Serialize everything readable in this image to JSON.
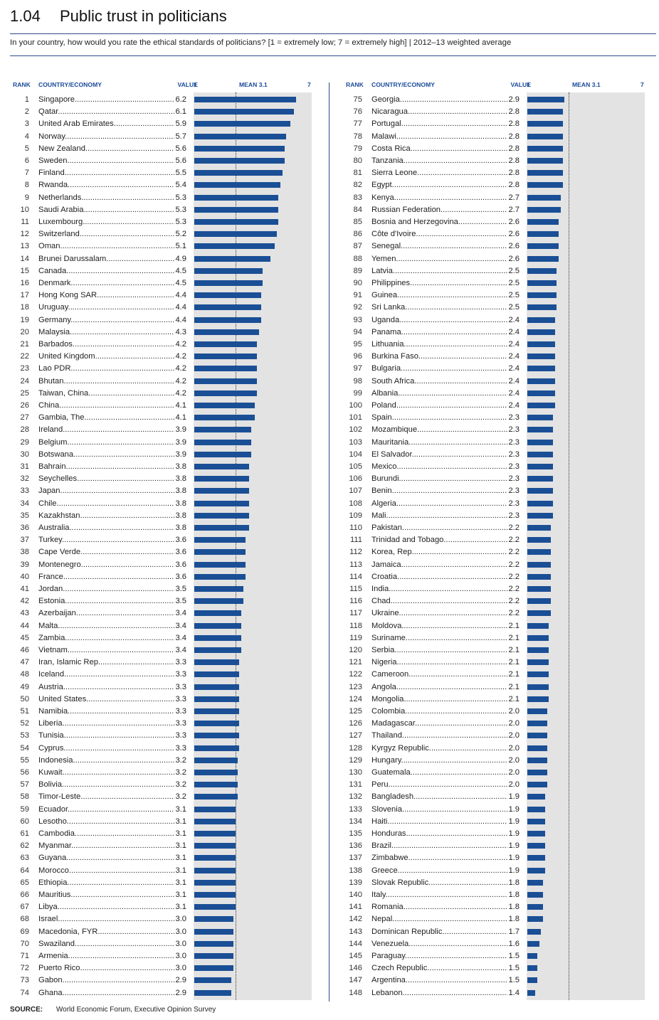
{
  "title_number": "1.04",
  "title": "Public trust in politicians",
  "subtitle": "In your country, how would you rate the ethical standards of politicians? [1 = extremely low; 7 = extremely high] | 2012–13 weighted average",
  "headers": {
    "rank": "RANK",
    "country": "COUNTRY/ECONOMY",
    "value": "VALUE",
    "scale_min": "1",
    "mean": "MEAN 3.1",
    "scale_max": "7"
  },
  "source_label": "SOURCE:",
  "source_text": "World Economic Forum, Executive Opinion Survey",
  "colors": {
    "bar": "#1a4f96",
    "background_band": "#e3e3e3",
    "header_text": "#1a4a9a",
    "rule": "#2e4a8a"
  },
  "chart_data": {
    "type": "bar",
    "orientation": "horizontal",
    "title": "Public trust in politicians",
    "xlim": [
      1,
      7
    ],
    "mean": 3.1,
    "rows": [
      {
        "rank": "1",
        "country": "Singapore",
        "value": "6.2"
      },
      {
        "rank": "2",
        "country": "Qatar",
        "value": "6.1"
      },
      {
        "rank": "3",
        "country": "United Arab Emirates",
        "value": "5.9"
      },
      {
        "rank": "4",
        "country": "Norway",
        "value": "5.7"
      },
      {
        "rank": "5",
        "country": "New Zealand",
        "value": "5.6"
      },
      {
        "rank": "6",
        "country": "Sweden",
        "value": "5.6"
      },
      {
        "rank": "7",
        "country": "Finland",
        "value": "5.5"
      },
      {
        "rank": "8",
        "country": "Rwanda",
        "value": "5.4"
      },
      {
        "rank": "9",
        "country": "Netherlands",
        "value": "5.3"
      },
      {
        "rank": "10",
        "country": "Saudi Arabia",
        "value": "5.3"
      },
      {
        "rank": "11",
        "country": "Luxembourg",
        "value": "5.3"
      },
      {
        "rank": "12",
        "country": "Switzerland",
        "value": "5.2"
      },
      {
        "rank": "13",
        "country": "Oman",
        "value": "5.1"
      },
      {
        "rank": "14",
        "country": "Brunei Darussalam",
        "value": "4.9"
      },
      {
        "rank": "15",
        "country": "Canada",
        "value": "4.5"
      },
      {
        "rank": "16",
        "country": "Denmark",
        "value": "4.5"
      },
      {
        "rank": "17",
        "country": "Hong Kong SAR",
        "value": "4.4"
      },
      {
        "rank": "18",
        "country": "Uruguay",
        "value": "4.4"
      },
      {
        "rank": "19",
        "country": "Germany",
        "value": "4.4"
      },
      {
        "rank": "20",
        "country": "Malaysia",
        "value": "4.3"
      },
      {
        "rank": "21",
        "country": "Barbados",
        "value": "4.2"
      },
      {
        "rank": "22",
        "country": "United Kingdom",
        "value": "4.2"
      },
      {
        "rank": "23",
        "country": "Lao PDR",
        "value": "4.2"
      },
      {
        "rank": "24",
        "country": "Bhutan",
        "value": "4.2"
      },
      {
        "rank": "25",
        "country": "Taiwan, China",
        "value": "4.2"
      },
      {
        "rank": "26",
        "country": "China",
        "value": "4.1"
      },
      {
        "rank": "27",
        "country": "Gambia, The",
        "value": "4.1"
      },
      {
        "rank": "28",
        "country": "Ireland",
        "value": "3.9"
      },
      {
        "rank": "29",
        "country": "Belgium",
        "value": "3.9"
      },
      {
        "rank": "30",
        "country": "Botswana",
        "value": "3.9"
      },
      {
        "rank": "31",
        "country": "Bahrain",
        "value": "3.8"
      },
      {
        "rank": "32",
        "country": "Seychelles",
        "value": "3.8"
      },
      {
        "rank": "33",
        "country": "Japan",
        "value": "3.8"
      },
      {
        "rank": "34",
        "country": "Chile",
        "value": "3.8"
      },
      {
        "rank": "35",
        "country": "Kazakhstan",
        "value": "3.8"
      },
      {
        "rank": "36",
        "country": "Australia",
        "value": "3.8"
      },
      {
        "rank": "37",
        "country": "Turkey",
        "value": "3.6"
      },
      {
        "rank": "38",
        "country": "Cape Verde",
        "value": "3.6"
      },
      {
        "rank": "39",
        "country": "Montenegro",
        "value": "3.6"
      },
      {
        "rank": "40",
        "country": "France",
        "value": "3.6"
      },
      {
        "rank": "41",
        "country": "Jordan",
        "value": "3.5"
      },
      {
        "rank": "42",
        "country": "Estonia",
        "value": "3.5"
      },
      {
        "rank": "43",
        "country": "Azerbaijan",
        "value": "3.4"
      },
      {
        "rank": "44",
        "country": "Malta",
        "value": "3.4"
      },
      {
        "rank": "45",
        "country": "Zambia",
        "value": "3.4"
      },
      {
        "rank": "46",
        "country": "Vietnam",
        "value": "3.4"
      },
      {
        "rank": "47",
        "country": "Iran, Islamic Rep.",
        "value": "3.3"
      },
      {
        "rank": "48",
        "country": "Iceland",
        "value": "3.3"
      },
      {
        "rank": "49",
        "country": "Austria",
        "value": "3.3"
      },
      {
        "rank": "50",
        "country": "United States",
        "value": "3.3"
      },
      {
        "rank": "51",
        "country": "Namibia",
        "value": "3.3"
      },
      {
        "rank": "52",
        "country": "Liberia",
        "value": "3.3"
      },
      {
        "rank": "53",
        "country": "Tunisia",
        "value": "3.3"
      },
      {
        "rank": "54",
        "country": "Cyprus",
        "value": "3.3"
      },
      {
        "rank": "55",
        "country": "Indonesia",
        "value": "3.2"
      },
      {
        "rank": "56",
        "country": "Kuwait",
        "value": "3.2"
      },
      {
        "rank": "57",
        "country": "Bolivia",
        "value": "3.2"
      },
      {
        "rank": "58",
        "country": "Timor-Leste",
        "value": "3.2"
      },
      {
        "rank": "59",
        "country": "Ecuador",
        "value": "3.1"
      },
      {
        "rank": "60",
        "country": "Lesotho",
        "value": "3.1"
      },
      {
        "rank": "61",
        "country": "Cambodia",
        "value": "3.1"
      },
      {
        "rank": "62",
        "country": "Myanmar",
        "value": "3.1"
      },
      {
        "rank": "63",
        "country": "Guyana",
        "value": "3.1"
      },
      {
        "rank": "64",
        "country": "Morocco",
        "value": "3.1"
      },
      {
        "rank": "65",
        "country": "Ethiopia",
        "value": "3.1"
      },
      {
        "rank": "66",
        "country": "Mauritius",
        "value": "3.1"
      },
      {
        "rank": "67",
        "country": "Libya",
        "value": "3.1"
      },
      {
        "rank": "68",
        "country": "Israel",
        "value": "3.0"
      },
      {
        "rank": "69",
        "country": "Macedonia, FYR",
        "value": "3.0"
      },
      {
        "rank": "70",
        "country": "Swaziland",
        "value": "3.0"
      },
      {
        "rank": "71",
        "country": "Armenia",
        "value": "3.0"
      },
      {
        "rank": "72",
        "country": "Puerto Rico",
        "value": "3.0"
      },
      {
        "rank": "73",
        "country": "Gabon",
        "value": "2.9"
      },
      {
        "rank": "74",
        "country": "Ghana",
        "value": "2.9"
      },
      {
        "rank": "75",
        "country": "Georgia",
        "value": "2.9"
      },
      {
        "rank": "76",
        "country": "Nicaragua",
        "value": "2.8"
      },
      {
        "rank": "77",
        "country": "Portugal",
        "value": "2.8"
      },
      {
        "rank": "78",
        "country": "Malawi",
        "value": "2.8"
      },
      {
        "rank": "79",
        "country": "Costa Rica",
        "value": "2.8"
      },
      {
        "rank": "80",
        "country": "Tanzania",
        "value": "2.8"
      },
      {
        "rank": "81",
        "country": "Sierra Leone",
        "value": "2.8"
      },
      {
        "rank": "82",
        "country": "Egypt",
        "value": "2.8"
      },
      {
        "rank": "83",
        "country": "Kenya",
        "value": "2.7"
      },
      {
        "rank": "84",
        "country": "Russian Federation",
        "value": "2.7"
      },
      {
        "rank": "85",
        "country": "Bosnia and Herzegovina",
        "value": "2.6"
      },
      {
        "rank": "86",
        "country": "Côte d'Ivoire",
        "value": "2.6"
      },
      {
        "rank": "87",
        "country": "Senegal",
        "value": "2.6"
      },
      {
        "rank": "88",
        "country": "Yemen",
        "value": "2.6"
      },
      {
        "rank": "89",
        "country": "Latvia",
        "value": "2.5"
      },
      {
        "rank": "90",
        "country": "Philippines",
        "value": "2.5"
      },
      {
        "rank": "91",
        "country": "Guinea",
        "value": "2.5"
      },
      {
        "rank": "92",
        "country": "Sri Lanka",
        "value": "2.5"
      },
      {
        "rank": "93",
        "country": "Uganda",
        "value": "2.4"
      },
      {
        "rank": "94",
        "country": "Panama",
        "value": "2.4"
      },
      {
        "rank": "95",
        "country": "Lithuania",
        "value": "2.4"
      },
      {
        "rank": "96",
        "country": "Burkina Faso",
        "value": "2.4"
      },
      {
        "rank": "97",
        "country": "Bulgaria",
        "value": "2.4"
      },
      {
        "rank": "98",
        "country": "South Africa",
        "value": "2.4"
      },
      {
        "rank": "99",
        "country": "Albania",
        "value": "2.4"
      },
      {
        "rank": "100",
        "country": "Poland",
        "value": "2.4"
      },
      {
        "rank": "101",
        "country": "Spain",
        "value": "2.3"
      },
      {
        "rank": "102",
        "country": "Mozambique",
        "value": "2.3"
      },
      {
        "rank": "103",
        "country": "Mauritania",
        "value": "2.3"
      },
      {
        "rank": "104",
        "country": "El Salvador",
        "value": "2.3"
      },
      {
        "rank": "105",
        "country": "Mexico",
        "value": "2.3"
      },
      {
        "rank": "106",
        "country": "Burundi",
        "value": "2.3"
      },
      {
        "rank": "107",
        "country": "Benin",
        "value": "2.3"
      },
      {
        "rank": "108",
        "country": "Algeria",
        "value": "2.3"
      },
      {
        "rank": "109",
        "country": "Mali",
        "value": "2.3"
      },
      {
        "rank": "110",
        "country": "Pakistan",
        "value": "2.2"
      },
      {
        "rank": "111",
        "country": "Trinidad and Tobago",
        "value": "2.2"
      },
      {
        "rank": "112",
        "country": "Korea, Rep.",
        "value": "2.2"
      },
      {
        "rank": "113",
        "country": "Jamaica",
        "value": "2.2"
      },
      {
        "rank": "114",
        "country": "Croatia",
        "value": "2.2"
      },
      {
        "rank": "115",
        "country": "India",
        "value": "2.2"
      },
      {
        "rank": "116",
        "country": "Chad",
        "value": "2.2"
      },
      {
        "rank": "117",
        "country": "Ukraine",
        "value": "2.2"
      },
      {
        "rank": "118",
        "country": "Moldova",
        "value": "2.1"
      },
      {
        "rank": "119",
        "country": "Suriname",
        "value": "2.1"
      },
      {
        "rank": "120",
        "country": "Serbia",
        "value": "2.1"
      },
      {
        "rank": "121",
        "country": "Nigeria",
        "value": "2.1"
      },
      {
        "rank": "122",
        "country": "Cameroon",
        "value": "2.1"
      },
      {
        "rank": "123",
        "country": "Angola",
        "value": "2.1"
      },
      {
        "rank": "124",
        "country": "Mongolia",
        "value": "2.1"
      },
      {
        "rank": "125",
        "country": "Colombia",
        "value": "2.0"
      },
      {
        "rank": "126",
        "country": "Madagascar",
        "value": "2.0"
      },
      {
        "rank": "127",
        "country": "Thailand",
        "value": "2.0"
      },
      {
        "rank": "128",
        "country": "Kyrgyz Republic",
        "value": "2.0"
      },
      {
        "rank": "129",
        "country": "Hungary",
        "value": "2.0"
      },
      {
        "rank": "130",
        "country": "Guatemala",
        "value": "2.0"
      },
      {
        "rank": "131",
        "country": "Peru",
        "value": "2.0"
      },
      {
        "rank": "132",
        "country": "Bangladesh",
        "value": "1.9"
      },
      {
        "rank": "133",
        "country": "Slovenia",
        "value": "1.9"
      },
      {
        "rank": "134",
        "country": "Haiti",
        "value": "1.9"
      },
      {
        "rank": "135",
        "country": "Honduras",
        "value": "1.9"
      },
      {
        "rank": "136",
        "country": "Brazil",
        "value": "1.9"
      },
      {
        "rank": "137",
        "country": "Zimbabwe",
        "value": "1.9"
      },
      {
        "rank": "138",
        "country": "Greece",
        "value": "1.9"
      },
      {
        "rank": "139",
        "country": "Slovak Republic",
        "value": "1.8"
      },
      {
        "rank": "140",
        "country": "Italy",
        "value": "1.8"
      },
      {
        "rank": "141",
        "country": "Romania",
        "value": "1.8"
      },
      {
        "rank": "142",
        "country": "Nepal",
        "value": "1.8"
      },
      {
        "rank": "143",
        "country": "Dominican Republic",
        "value": "1.7"
      },
      {
        "rank": "144",
        "country": "Venezuela",
        "value": "1.6"
      },
      {
        "rank": "145",
        "country": "Paraguay",
        "value": "1.5"
      },
      {
        "rank": "146",
        "country": "Czech Republic",
        "value": "1.5"
      },
      {
        "rank": "147",
        "country": "Argentina",
        "value": "1.5"
      },
      {
        "rank": "148",
        "country": "Lebanon",
        "value": "1.4"
      }
    ]
  }
}
